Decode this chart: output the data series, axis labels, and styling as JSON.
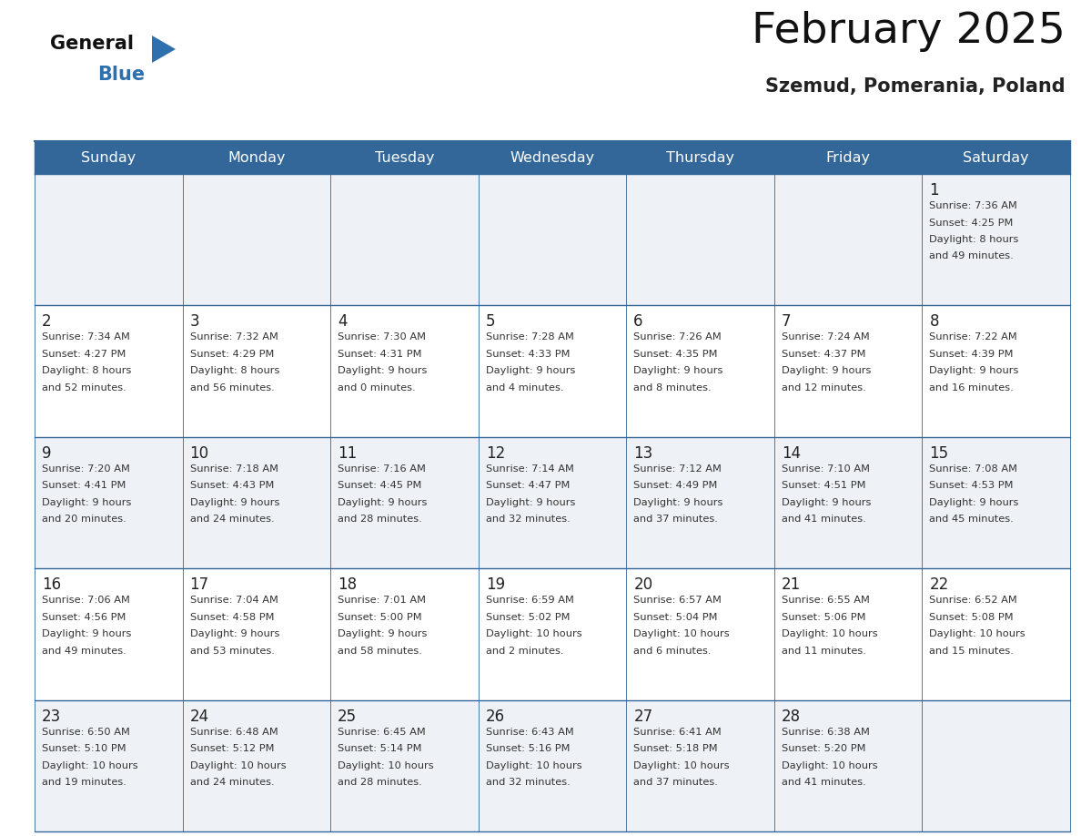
{
  "title": "February 2025",
  "subtitle": "Szemud, Pomerania, Poland",
  "header_bg": "#336699",
  "header_text_color": "#ffffff",
  "cell_bg_even": "#eef2f7",
  "cell_bg_odd": "#ffffff",
  "border_color": "#336699",
  "day_names": [
    "Sunday",
    "Monday",
    "Tuesday",
    "Wednesday",
    "Thursday",
    "Friday",
    "Saturday"
  ],
  "text_color": "#333333",
  "day_num_color": "#222222",
  "logo_general_color": "#111111",
  "logo_blue_color": "#2e6fad",
  "calendar": [
    [
      null,
      null,
      null,
      null,
      null,
      null,
      {
        "day": "1",
        "sunrise": "7:36 AM",
        "sunset": "4:25 PM",
        "daylight1": "8 hours",
        "daylight2": "and 49 minutes."
      }
    ],
    [
      {
        "day": "2",
        "sunrise": "7:34 AM",
        "sunset": "4:27 PM",
        "daylight1": "8 hours",
        "daylight2": "and 52 minutes."
      },
      {
        "day": "3",
        "sunrise": "7:32 AM",
        "sunset": "4:29 PM",
        "daylight1": "8 hours",
        "daylight2": "and 56 minutes."
      },
      {
        "day": "4",
        "sunrise": "7:30 AM",
        "sunset": "4:31 PM",
        "daylight1": "9 hours",
        "daylight2": "and 0 minutes."
      },
      {
        "day": "5",
        "sunrise": "7:28 AM",
        "sunset": "4:33 PM",
        "daylight1": "9 hours",
        "daylight2": "and 4 minutes."
      },
      {
        "day": "6",
        "sunrise": "7:26 AM",
        "sunset": "4:35 PM",
        "daylight1": "9 hours",
        "daylight2": "and 8 minutes."
      },
      {
        "day": "7",
        "sunrise": "7:24 AM",
        "sunset": "4:37 PM",
        "daylight1": "9 hours",
        "daylight2": "and 12 minutes."
      },
      {
        "day": "8",
        "sunrise": "7:22 AM",
        "sunset": "4:39 PM",
        "daylight1": "9 hours",
        "daylight2": "and 16 minutes."
      }
    ],
    [
      {
        "day": "9",
        "sunrise": "7:20 AM",
        "sunset": "4:41 PM",
        "daylight1": "9 hours",
        "daylight2": "and 20 minutes."
      },
      {
        "day": "10",
        "sunrise": "7:18 AM",
        "sunset": "4:43 PM",
        "daylight1": "9 hours",
        "daylight2": "and 24 minutes."
      },
      {
        "day": "11",
        "sunrise": "7:16 AM",
        "sunset": "4:45 PM",
        "daylight1": "9 hours",
        "daylight2": "and 28 minutes."
      },
      {
        "day": "12",
        "sunrise": "7:14 AM",
        "sunset": "4:47 PM",
        "daylight1": "9 hours",
        "daylight2": "and 32 minutes."
      },
      {
        "day": "13",
        "sunrise": "7:12 AM",
        "sunset": "4:49 PM",
        "daylight1": "9 hours",
        "daylight2": "and 37 minutes."
      },
      {
        "day": "14",
        "sunrise": "7:10 AM",
        "sunset": "4:51 PM",
        "daylight1": "9 hours",
        "daylight2": "and 41 minutes."
      },
      {
        "day": "15",
        "sunrise": "7:08 AM",
        "sunset": "4:53 PM",
        "daylight1": "9 hours",
        "daylight2": "and 45 minutes."
      }
    ],
    [
      {
        "day": "16",
        "sunrise": "7:06 AM",
        "sunset": "4:56 PM",
        "daylight1": "9 hours",
        "daylight2": "and 49 minutes."
      },
      {
        "day": "17",
        "sunrise": "7:04 AM",
        "sunset": "4:58 PM",
        "daylight1": "9 hours",
        "daylight2": "and 53 minutes."
      },
      {
        "day": "18",
        "sunrise": "7:01 AM",
        "sunset": "5:00 PM",
        "daylight1": "9 hours",
        "daylight2": "and 58 minutes."
      },
      {
        "day": "19",
        "sunrise": "6:59 AM",
        "sunset": "5:02 PM",
        "daylight1": "10 hours",
        "daylight2": "and 2 minutes."
      },
      {
        "day": "20",
        "sunrise": "6:57 AM",
        "sunset": "5:04 PM",
        "daylight1": "10 hours",
        "daylight2": "and 6 minutes."
      },
      {
        "day": "21",
        "sunrise": "6:55 AM",
        "sunset": "5:06 PM",
        "daylight1": "10 hours",
        "daylight2": "and 11 minutes."
      },
      {
        "day": "22",
        "sunrise": "6:52 AM",
        "sunset": "5:08 PM",
        "daylight1": "10 hours",
        "daylight2": "and 15 minutes."
      }
    ],
    [
      {
        "day": "23",
        "sunrise": "6:50 AM",
        "sunset": "5:10 PM",
        "daylight1": "10 hours",
        "daylight2": "and 19 minutes."
      },
      {
        "day": "24",
        "sunrise": "6:48 AM",
        "sunset": "5:12 PM",
        "daylight1": "10 hours",
        "daylight2": "and 24 minutes."
      },
      {
        "day": "25",
        "sunrise": "6:45 AM",
        "sunset": "5:14 PM",
        "daylight1": "10 hours",
        "daylight2": "and 28 minutes."
      },
      {
        "day": "26",
        "sunrise": "6:43 AM",
        "sunset": "5:16 PM",
        "daylight1": "10 hours",
        "daylight2": "and 32 minutes."
      },
      {
        "day": "27",
        "sunrise": "6:41 AM",
        "sunset": "5:18 PM",
        "daylight1": "10 hours",
        "daylight2": "and 37 minutes."
      },
      {
        "day": "28",
        "sunrise": "6:38 AM",
        "sunset": "5:20 PM",
        "daylight1": "10 hours",
        "daylight2": "and 41 minutes."
      },
      null
    ]
  ]
}
